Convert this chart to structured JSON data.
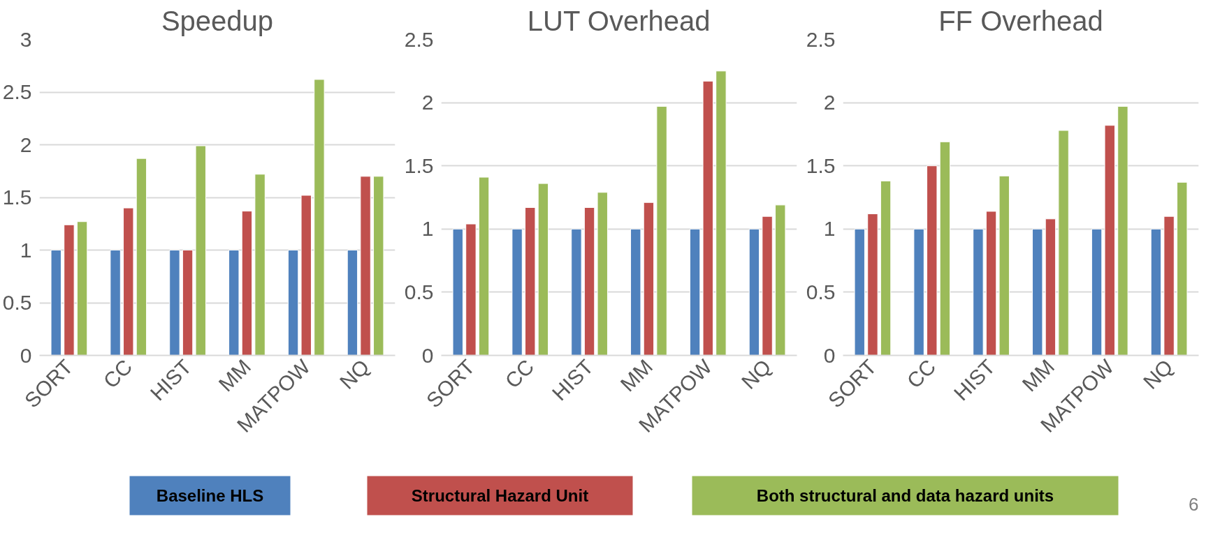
{
  "chart_data": [
    {
      "type": "bar",
      "title": "Speedup",
      "categories": [
        "SORT",
        "CC",
        "HIST",
        "MM",
        "MATPOW",
        "NQ"
      ],
      "ylim": [
        0,
        3
      ],
      "yticks": [
        0,
        0.5,
        1,
        1.5,
        2,
        2.5,
        3
      ],
      "grid": "y",
      "legend": "bottom",
      "series": [
        {
          "name": "Baseline HLS",
          "color": "#4f81bd",
          "values": [
            1,
            1,
            1,
            1,
            1,
            1
          ]
        },
        {
          "name": "Structural Hazard Unit",
          "color": "#c0504d",
          "values": [
            1.24,
            1.4,
            1.0,
            1.37,
            1.52,
            1.7
          ]
        },
        {
          "name": "Both structural and data hazard units",
          "color": "#9bbb59",
          "values": [
            1.27,
            1.87,
            1.99,
            1.72,
            2.62,
            1.7
          ]
        }
      ]
    },
    {
      "type": "bar",
      "title": "LUT Overhead",
      "categories": [
        "SORT",
        "CC",
        "HIST",
        "MM",
        "MATPOW",
        "NQ"
      ],
      "ylim": [
        0,
        2.5
      ],
      "yticks": [
        0,
        0.5,
        1,
        1.5,
        2,
        2.5
      ],
      "grid": "y",
      "series": [
        {
          "color": "#4f81bd",
          "values": [
            1,
            1,
            1,
            1,
            1,
            1
          ]
        },
        {
          "color": "#c0504d",
          "values": [
            1.04,
            1.17,
            1.17,
            1.21,
            2.17,
            1.1
          ]
        },
        {
          "color": "#9bbb59",
          "values": [
            1.41,
            1.36,
            1.29,
            1.97,
            2.25,
            1.19
          ]
        }
      ]
    },
    {
      "type": "bar",
      "title": "FF Overhead",
      "categories": [
        "SORT",
        "CC",
        "HIST",
        "MM",
        "MATPOW",
        "NQ"
      ],
      "ylim": [
        0,
        2.5
      ],
      "yticks": [
        0,
        0.5,
        1,
        1.5,
        2,
        2.5
      ],
      "grid": "y",
      "annotations": [
        "6"
      ],
      "series": [
        {
          "color": "#4f81bd",
          "values": [
            1,
            1,
            1,
            1,
            1,
            1
          ]
        },
        {
          "color": "#c0504d",
          "values": [
            1.12,
            1.5,
            1.14,
            1.08,
            1.82,
            1.1
          ]
        },
        {
          "color": "#9bbb59",
          "values": [
            1.38,
            1.69,
            1.42,
            1.78,
            1.97,
            1.37
          ]
        }
      ]
    }
  ]
}
